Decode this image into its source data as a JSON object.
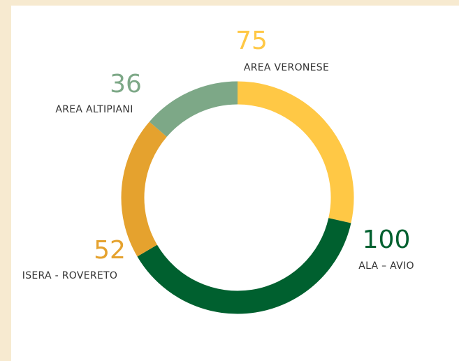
{
  "chart_data": {
    "type": "donut",
    "categories": [
      "AREA VERONESE",
      "ALA – AVIO",
      "ISERA - ROVERETO",
      "AREA ALTIPIANI"
    ],
    "values": [
      75,
      100,
      52,
      36
    ],
    "colors": [
      "#FFC845",
      "#00602F",
      "#E5A22E",
      "#7DA887"
    ]
  }
}
